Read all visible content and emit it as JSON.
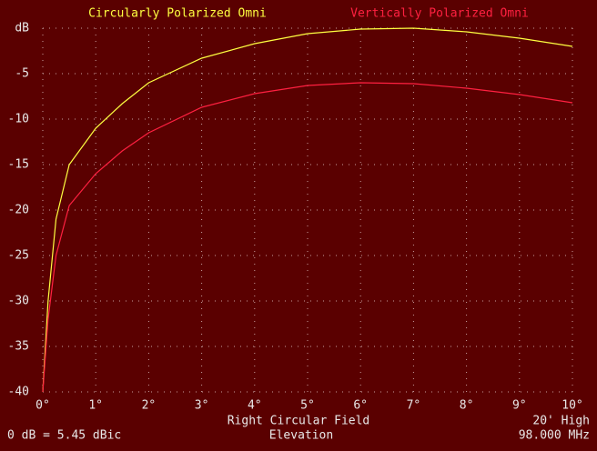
{
  "chart_data": {
    "type": "line",
    "legend_left": "Circularly Polarized Omni",
    "legend_right": "Vertically Polarized Omni",
    "footer_left": "0 dB = 5.45 dBic",
    "footer_center": [
      "Right Circular Field",
      "Elevation"
    ],
    "footer_right": [
      "20' High",
      "98.000 MHz"
    ],
    "x": [
      0,
      0.1,
      0.25,
      0.5,
      1,
      1.5,
      2,
      3,
      4,
      5,
      6,
      7,
      8,
      9,
      10
    ],
    "series": [
      {
        "name": "Circularly Polarized Omni",
        "color": "#ffff40",
        "values": [
          -40,
          -30,
          -21,
          -15,
          -11,
          -8.3,
          -6,
          -3.3,
          -1.7,
          -0.6,
          -0.1,
          0,
          -0.4,
          -1.1,
          -2.0
        ]
      },
      {
        "name": "Vertically Polarized Omni",
        "color": "#ff2040",
        "values": [
          -40,
          -32,
          -25,
          -19.5,
          -16,
          -13.5,
          -11.5,
          -8.7,
          -7.2,
          -6.3,
          -6,
          -6.1,
          -6.6,
          -7.3,
          -8.2
        ]
      }
    ],
    "xlim": [
      0,
      10
    ],
    "xticks": [
      {
        "value": 0,
        "label": "0°"
      },
      {
        "value": 1,
        "label": "1°"
      },
      {
        "value": 2,
        "label": "2°"
      },
      {
        "value": 3,
        "label": "3°"
      },
      {
        "value": 4,
        "label": "4°"
      },
      {
        "value": 5,
        "label": "5°"
      },
      {
        "value": 6,
        "label": "6°"
      },
      {
        "value": 7,
        "label": "7°"
      },
      {
        "value": 8,
        "label": "8°"
      },
      {
        "value": 9,
        "label": "9°"
      },
      {
        "value": 10,
        "label": "10°"
      }
    ],
    "ylim": [
      -40,
      0
    ],
    "yticks": [
      {
        "value": 0,
        "label": "dB"
      },
      -5,
      -10,
      -15,
      -20,
      -25,
      -30,
      -35,
      -40
    ],
    "grid": true
  }
}
